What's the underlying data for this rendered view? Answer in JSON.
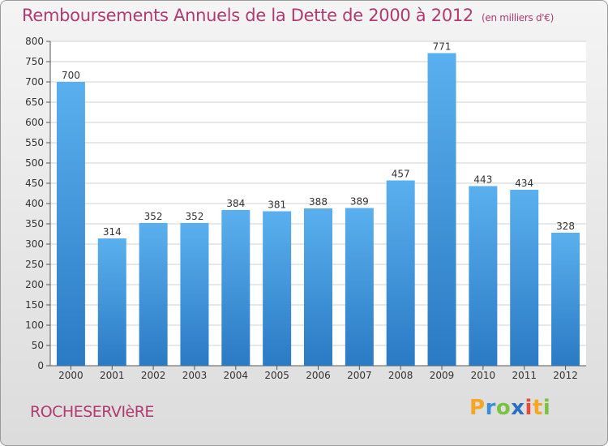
{
  "chart_data": {
    "type": "bar",
    "title": "Remboursements Annuels de la Dette de 2000 à 2012",
    "subtitle": "(en milliers d'€)",
    "categories": [
      "2000",
      "2001",
      "2002",
      "2003",
      "2004",
      "2005",
      "2006",
      "2007",
      "2008",
      "2009",
      "2010",
      "2011",
      "2012"
    ],
    "values": [
      700,
      314,
      352,
      352,
      384,
      381,
      388,
      389,
      457,
      771,
      443,
      434,
      328
    ],
    "ylim": [
      0,
      800
    ],
    "yticks": [
      0,
      50,
      100,
      150,
      200,
      250,
      300,
      350,
      400,
      450,
      500,
      550,
      600,
      650,
      700,
      750,
      800
    ],
    "xlabel": "",
    "ylabel": "",
    "grid": true,
    "bar_color": "#4a9ee0"
  },
  "commune": "ROCHESERVIèRE",
  "logo": {
    "text": "Proxiti",
    "letters": [
      "P",
      "r",
      "o",
      "x",
      "i",
      "t",
      "i"
    ],
    "colors": [
      "#f5a623",
      "#3a8fd6",
      "#7cc242",
      "#2a6fc0",
      "#e94b3c",
      "#f5a623",
      "#7cc242"
    ]
  },
  "colors": {
    "title": "#b03a72",
    "axis": "#555555",
    "grid": "#d0d0d0"
  }
}
